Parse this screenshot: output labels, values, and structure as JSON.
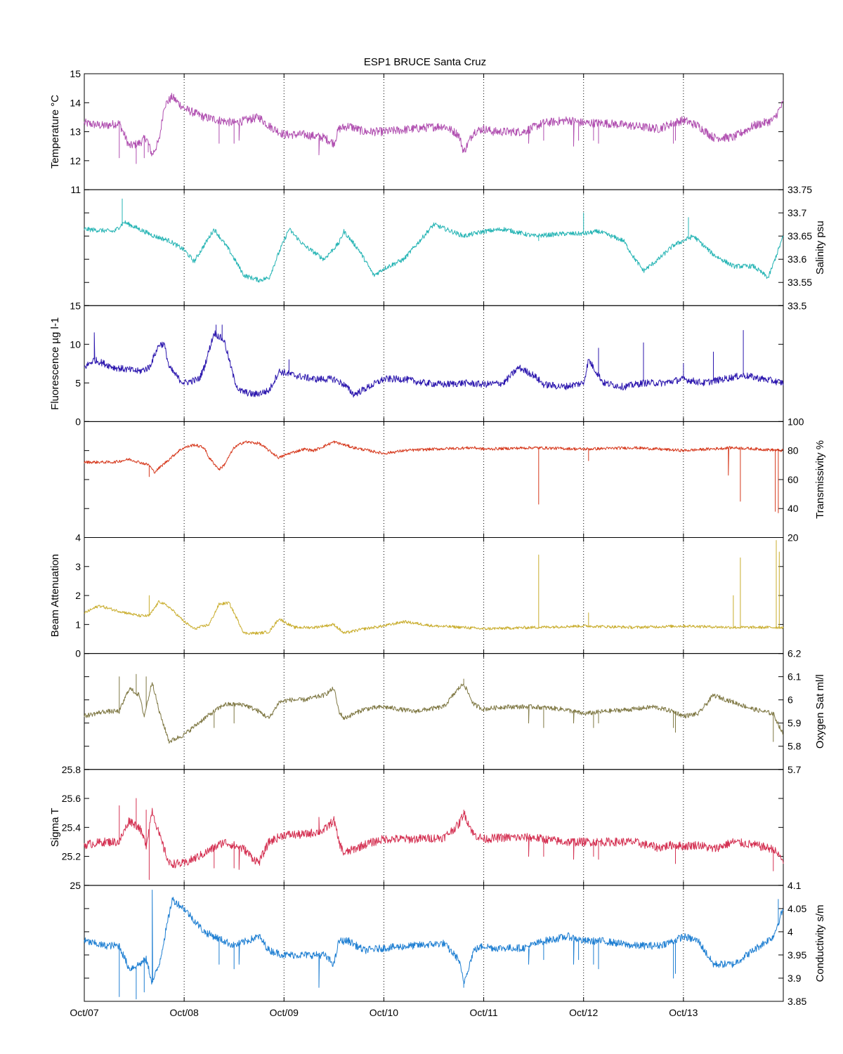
{
  "title": "ESP1 BRUCE Santa Cruz",
  "chart_data": {
    "type": "line",
    "title": "ESP1 BRUCE Santa Cruz",
    "x_ticks": [
      "Oct/07",
      "Oct/08",
      "Oct/09",
      "Oct/10",
      "Oct/11",
      "Oct/12",
      "Oct/13"
    ],
    "x_range": [
      "Oct/07",
      "Oct/14"
    ],
    "grid": "vertical dotted lines at day ticks",
    "panels": [
      {
        "ylabel": "Temperature °C",
        "axis_side": "left",
        "ylim": [
          11,
          15
        ],
        "ticks": [
          "11",
          "12",
          "13",
          "14",
          "15"
        ],
        "color": "#b04fb0",
        "noise": 0.15,
        "x": [
          0.0,
          0.2,
          0.35,
          0.45,
          0.55,
          0.62,
          0.68,
          0.75,
          0.8,
          0.88,
          1.0,
          1.2,
          1.5,
          1.75,
          1.85,
          2.0,
          2.2,
          2.4,
          2.5,
          2.55,
          2.65,
          2.8,
          3.0,
          3.3,
          3.6,
          3.75,
          3.8,
          3.9,
          4.0,
          4.1,
          4.2,
          4.4,
          4.6,
          4.85,
          5.0,
          5.2,
          5.5,
          5.75,
          5.9,
          6.0,
          6.15,
          6.3,
          6.5,
          6.7,
          6.9,
          7.0
        ],
        "y": [
          13.3,
          13.2,
          13.3,
          12.5,
          12.6,
          12.8,
          12.2,
          12.7,
          13.9,
          14.2,
          13.8,
          13.5,
          13.3,
          13.5,
          13.2,
          12.9,
          12.9,
          12.8,
          12.6,
          13.1,
          13.2,
          13.0,
          13.0,
          13.1,
          13.2,
          12.9,
          12.3,
          13.0,
          13.1,
          13.0,
          13.0,
          13.0,
          13.3,
          13.4,
          13.3,
          13.3,
          13.2,
          13.1,
          13.3,
          13.4,
          13.2,
          12.8,
          12.8,
          13.2,
          13.4,
          14.0
        ],
        "spikes": [
          [
            0.35,
            12.1
          ],
          [
            0.52,
            11.9
          ],
          [
            0.6,
            12.1
          ],
          [
            0.64,
            12.3
          ],
          [
            1.35,
            12.6
          ],
          [
            1.5,
            12.6
          ],
          [
            1.55,
            12.7
          ],
          [
            2.35,
            12.2
          ],
          [
            3.8,
            12.3
          ],
          [
            4.45,
            12.6
          ],
          [
            4.6,
            12.7
          ],
          [
            4.9,
            12.5
          ],
          [
            4.95,
            12.7
          ],
          [
            5.1,
            12.7
          ],
          [
            5.15,
            12.6
          ],
          [
            5.9,
            12.6
          ],
          [
            5.92,
            12.7
          ]
        ]
      },
      {
        "ylabel": "Salinity psu",
        "axis_side": "right",
        "ylim": [
          33.5,
          33.75
        ],
        "ticks": [
          "33.5",
          "33.55",
          "33.6",
          "33.65",
          "33.7",
          "33.75"
        ],
        "color": "#25b4b4",
        "noise": 0.005,
        "x": [
          0.0,
          0.3,
          0.4,
          0.7,
          0.85,
          1.0,
          1.1,
          1.2,
          1.3,
          1.45,
          1.6,
          1.75,
          1.85,
          1.95,
          2.05,
          2.2,
          2.4,
          2.55,
          2.6,
          2.75,
          2.9,
          3.0,
          3.2,
          3.5,
          3.8,
          4.0,
          4.2,
          4.5,
          4.8,
          5.0,
          5.15,
          5.4,
          5.5,
          5.6,
          5.75,
          5.9,
          6.1,
          6.3,
          6.5,
          6.7,
          6.85,
          7.0
        ],
        "y": [
          33.665,
          33.66,
          33.68,
          33.65,
          33.64,
          33.62,
          33.595,
          33.63,
          33.665,
          33.62,
          33.565,
          33.555,
          33.56,
          33.615,
          33.665,
          33.63,
          33.6,
          33.635,
          33.66,
          33.62,
          33.565,
          33.58,
          33.6,
          33.675,
          33.65,
          33.66,
          33.665,
          33.65,
          33.655,
          33.655,
          33.66,
          33.64,
          33.605,
          33.575,
          33.6,
          33.63,
          33.65,
          33.61,
          33.585,
          33.585,
          33.56,
          33.65
        ],
        "spikes": [
          [
            0.38,
            33.73
          ],
          [
            4.55,
            33.64
          ],
          [
            5.0,
            33.7
          ],
          [
            6.05,
            33.69
          ]
        ]
      },
      {
        "ylabel": "Fluorescence µg l-1",
        "axis_side": "left",
        "ylim": [
          0,
          15
        ],
        "ticks": [
          "0",
          "5",
          "10",
          "15"
        ],
        "color": "#2c17ae",
        "noise": 0.45,
        "x": [
          0.0,
          0.1,
          0.3,
          0.55,
          0.65,
          0.75,
          0.8,
          0.85,
          0.95,
          1.0,
          1.15,
          1.2,
          1.3,
          1.4,
          1.5,
          1.55,
          1.7,
          1.85,
          1.95,
          2.1,
          2.3,
          2.5,
          2.6,
          2.7,
          2.85,
          3.0,
          3.2,
          3.4,
          3.6,
          3.8,
          4.0,
          4.2,
          4.35,
          4.5,
          4.6,
          4.8,
          5.0,
          5.05,
          5.2,
          5.4,
          5.6,
          5.8,
          6.0,
          6.2,
          6.4,
          6.6,
          6.8,
          7.0
        ],
        "y": [
          7.0,
          8.0,
          7.0,
          6.5,
          7.0,
          10.0,
          10.0,
          7.0,
          5.5,
          5.0,
          5.5,
          7.0,
          11.5,
          10.5,
          5.5,
          4.0,
          3.5,
          4.0,
          6.5,
          6.0,
          5.5,
          5.5,
          4.8,
          3.5,
          4.5,
          5.5,
          5.5,
          5.0,
          4.8,
          5.0,
          4.8,
          5.0,
          7.0,
          6.0,
          4.8,
          4.5,
          5.0,
          8.0,
          5.0,
          4.5,
          5.0,
          5.0,
          5.5,
          5.0,
          5.5,
          6.0,
          5.5,
          5.0
        ],
        "spikes": [
          [
            0.1,
            11.5
          ],
          [
            1.32,
            12.5
          ],
          [
            1.38,
            12.5
          ],
          [
            2.05,
            8.0
          ],
          [
            5.15,
            9.5
          ],
          [
            5.6,
            10.2
          ],
          [
            6.0,
            7.5
          ],
          [
            6.3,
            9.0
          ],
          [
            6.6,
            11.8
          ]
        ]
      },
      {
        "ylabel": "Transmissivity %",
        "axis_side": "right",
        "ylim": [
          20,
          100
        ],
        "ticks": [
          "20",
          "40",
          "60",
          "80",
          "100"
        ],
        "color": "#d6391d",
        "noise": 1.0,
        "x": [
          0.0,
          0.3,
          0.45,
          0.65,
          0.7,
          0.85,
          0.95,
          1.0,
          1.1,
          1.2,
          1.25,
          1.35,
          1.4,
          1.5,
          1.6,
          1.75,
          1.85,
          1.95,
          2.05,
          2.2,
          2.3,
          2.5,
          2.7,
          2.85,
          3.0,
          3.2,
          3.5,
          3.9,
          4.0,
          4.5,
          5.0,
          5.5,
          6.0,
          6.5,
          7.0
        ],
        "y": [
          72,
          72,
          74,
          70,
          65,
          74,
          80,
          82,
          84,
          82,
          75,
          67,
          70,
          82,
          86,
          85,
          80,
          75,
          78,
          81,
          80,
          86,
          82,
          80,
          78,
          80,
          81,
          82,
          81,
          82,
          81,
          82,
          80,
          82,
          80
        ],
        "spikes": [
          [
            0.65,
            62
          ],
          [
            0.95,
            80
          ],
          [
            4.55,
            43
          ],
          [
            5.05,
            73
          ],
          [
            6.45,
            63
          ],
          [
            6.57,
            45
          ],
          [
            6.92,
            38
          ],
          [
            6.95,
            37
          ]
        ]
      },
      {
        "ylabel": "Beam Attenuation",
        "axis_side": "left",
        "ylim": [
          0,
          4
        ],
        "ticks": [
          "0",
          "1",
          "2",
          "3",
          "4"
        ],
        "color": "#c9ad2d",
        "noise": 0.05,
        "x": [
          0.0,
          0.15,
          0.3,
          0.55,
          0.65,
          0.75,
          0.85,
          1.0,
          1.1,
          1.25,
          1.35,
          1.45,
          1.5,
          1.6,
          1.75,
          1.85,
          1.95,
          2.1,
          2.3,
          2.5,
          2.6,
          2.8,
          3.0,
          3.2,
          3.5,
          3.8,
          4.0,
          4.5,
          5.0,
          5.5,
          6.0,
          6.5,
          7.0
        ],
        "y": [
          1.4,
          1.65,
          1.5,
          1.3,
          1.3,
          1.8,
          1.6,
          1.1,
          0.85,
          1.0,
          1.7,
          1.75,
          1.4,
          0.7,
          0.7,
          0.75,
          1.2,
          0.9,
          0.9,
          1.0,
          0.7,
          0.85,
          0.95,
          1.1,
          0.95,
          0.9,
          0.85,
          0.9,
          0.95,
          0.9,
          0.95,
          0.9,
          0.9
        ],
        "spikes": [
          [
            0.65,
            2.0
          ],
          [
            4.55,
            3.4
          ],
          [
            5.05,
            1.4
          ],
          [
            6.5,
            2.0
          ],
          [
            6.57,
            3.3
          ],
          [
            6.93,
            3.9
          ],
          [
            6.96,
            3.5
          ]
        ]
      },
      {
        "ylabel": "Oxygen Sat ml/l",
        "axis_side": "right",
        "ylim": [
          5.7,
          6.2
        ],
        "ticks": [
          "5.7",
          "5.8",
          "5.9",
          "6",
          "6.1",
          "6.2"
        ],
        "color": "#7f7844",
        "noise": 0.01,
        "x": [
          0.0,
          0.2,
          0.35,
          0.45,
          0.55,
          0.6,
          0.68,
          0.75,
          0.85,
          1.0,
          1.2,
          1.4,
          1.6,
          1.75,
          1.85,
          1.95,
          2.05,
          2.2,
          2.4,
          2.5,
          2.55,
          2.6,
          2.8,
          3.0,
          3.3,
          3.6,
          3.75,
          3.8,
          3.9,
          4.0,
          4.2,
          4.5,
          4.8,
          5.0,
          5.2,
          5.5,
          5.7,
          5.9,
          6.0,
          6.15,
          6.3,
          6.5,
          6.7,
          6.9,
          7.0
        ],
        "y": [
          5.93,
          5.95,
          5.95,
          6.05,
          6.02,
          5.93,
          6.08,
          5.95,
          5.82,
          5.85,
          5.92,
          5.98,
          5.98,
          5.95,
          5.92,
          5.99,
          6.0,
          6.0,
          6.02,
          6.05,
          5.95,
          5.92,
          5.96,
          5.97,
          5.95,
          5.97,
          6.05,
          6.07,
          5.98,
          5.96,
          5.97,
          5.97,
          5.96,
          5.94,
          5.95,
          5.96,
          5.97,
          5.95,
          5.93,
          5.94,
          6.02,
          5.99,
          5.96,
          5.94,
          5.85
        ],
        "spikes": [
          [
            0.35,
            6.1
          ],
          [
            0.52,
            6.11
          ],
          [
            0.62,
            6.1
          ],
          [
            1.3,
            5.88
          ],
          [
            1.5,
            5.9
          ],
          [
            3.8,
            6.09
          ],
          [
            4.45,
            5.9
          ],
          [
            4.6,
            5.88
          ],
          [
            4.9,
            5.9
          ],
          [
            5.1,
            5.88
          ],
          [
            5.15,
            5.9
          ],
          [
            5.9,
            5.88
          ],
          [
            5.92,
            5.86
          ],
          [
            6.9,
            5.82
          ]
        ]
      },
      {
        "ylabel": "Sigma T",
        "axis_side": "left",
        "ylim": [
          25,
          25.8
        ],
        "ticks": [
          "25",
          "25.2",
          "25.4",
          "25.6",
          "25.8"
        ],
        "color": "#d43152",
        "noise": 0.03,
        "x": [
          0.0,
          0.2,
          0.35,
          0.45,
          0.55,
          0.62,
          0.68,
          0.75,
          0.85,
          1.0,
          1.2,
          1.4,
          1.6,
          1.7,
          1.75,
          1.85,
          2.0,
          2.2,
          2.4,
          2.5,
          2.55,
          2.6,
          2.8,
          3.0,
          3.3,
          3.6,
          3.75,
          3.8,
          3.9,
          4.0,
          4.2,
          4.5,
          4.8,
          5.0,
          5.2,
          5.5,
          5.75,
          5.9,
          6.0,
          6.15,
          6.3,
          6.5,
          6.7,
          6.9,
          7.0
        ],
        "y": [
          25.28,
          25.3,
          25.3,
          25.45,
          25.4,
          25.28,
          25.52,
          25.35,
          25.15,
          25.15,
          25.22,
          25.3,
          25.25,
          25.18,
          25.16,
          25.3,
          25.35,
          25.35,
          25.38,
          25.45,
          25.3,
          25.22,
          25.28,
          25.32,
          25.32,
          25.33,
          25.42,
          25.5,
          25.35,
          25.32,
          25.33,
          25.33,
          25.3,
          25.3,
          25.3,
          25.3,
          25.26,
          25.28,
          25.27,
          25.28,
          25.25,
          25.3,
          25.28,
          25.25,
          25.17
        ],
        "spikes": [
          [
            0.35,
            25.55
          ],
          [
            0.52,
            25.6
          ],
          [
            0.62,
            25.52
          ],
          [
            0.65,
            25.04
          ],
          [
            1.3,
            25.12
          ],
          [
            1.5,
            25.12
          ],
          [
            1.55,
            25.11
          ],
          [
            2.35,
            25.47
          ],
          [
            3.8,
            25.52
          ],
          [
            4.45,
            25.2
          ],
          [
            4.6,
            25.2
          ],
          [
            4.9,
            25.18
          ],
          [
            5.1,
            25.2
          ],
          [
            5.15,
            25.18
          ],
          [
            5.92,
            25.15
          ],
          [
            6.9,
            25.1
          ]
        ]
      },
      {
        "ylabel": "Conductivity s/m",
        "axis_side": "right",
        "ylim": [
          3.85,
          4.1
        ],
        "ticks": [
          "3.85",
          "3.9",
          "3.95",
          "4",
          "4.05",
          "4.1"
        ],
        "color": "#1f7fd2",
        "noise": 0.008,
        "x": [
          0.0,
          0.2,
          0.35,
          0.45,
          0.55,
          0.62,
          0.68,
          0.75,
          0.88,
          1.0,
          1.2,
          1.5,
          1.75,
          1.85,
          2.0,
          2.2,
          2.4,
          2.5,
          2.55,
          2.65,
          2.8,
          3.0,
          3.3,
          3.6,
          3.75,
          3.8,
          3.9,
          4.0,
          4.1,
          4.2,
          4.4,
          4.6,
          4.85,
          5.0,
          5.2,
          5.5,
          5.75,
          5.9,
          6.0,
          6.15,
          6.3,
          6.5,
          6.7,
          6.9,
          7.0
        ],
        "y": [
          3.98,
          3.97,
          3.97,
          3.92,
          3.93,
          3.94,
          3.89,
          3.93,
          4.07,
          4.05,
          4.0,
          3.97,
          3.99,
          3.96,
          3.95,
          3.95,
          3.95,
          3.93,
          3.98,
          3.98,
          3.96,
          3.965,
          3.97,
          3.975,
          3.94,
          3.89,
          3.96,
          3.97,
          3.965,
          3.965,
          3.965,
          3.98,
          3.99,
          3.98,
          3.98,
          3.97,
          3.97,
          3.98,
          3.99,
          3.98,
          3.93,
          3.93,
          3.96,
          3.99,
          4.05
        ],
        "spikes": [
          [
            0.35,
            3.86
          ],
          [
            0.52,
            3.855
          ],
          [
            0.6,
            3.87
          ],
          [
            0.68,
            4.09
          ],
          [
            1.35,
            3.93
          ],
          [
            1.5,
            3.92
          ],
          [
            1.55,
            3.93
          ],
          [
            2.35,
            3.88
          ],
          [
            3.8,
            3.88
          ],
          [
            4.45,
            3.93
          ],
          [
            4.6,
            3.94
          ],
          [
            4.9,
            3.93
          ],
          [
            4.95,
            3.94
          ],
          [
            5.1,
            3.93
          ],
          [
            5.15,
            3.92
          ],
          [
            5.9,
            3.9
          ],
          [
            5.92,
            3.91
          ],
          [
            6.95,
            4.07
          ]
        ]
      }
    ]
  }
}
